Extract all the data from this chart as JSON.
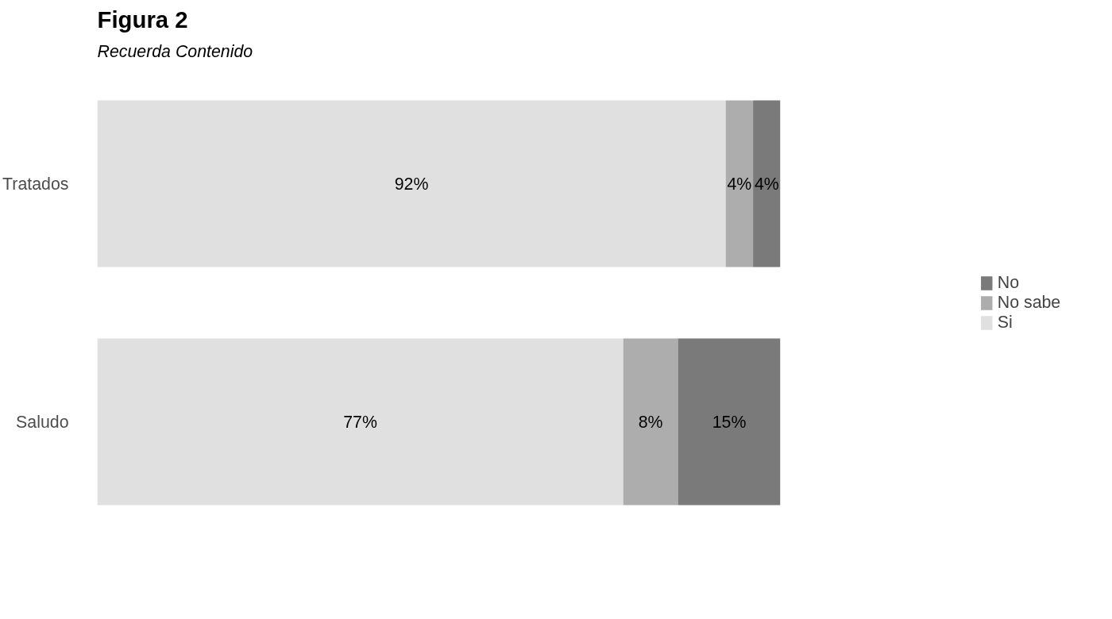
{
  "chart_data": {
    "type": "bar",
    "orientation": "horizontal",
    "stacked": true,
    "title": "Figura 2",
    "subtitle": "Recuerda Contenido",
    "categories": [
      "Tratados",
      "Saludo"
    ],
    "series": [
      {
        "name": "Si",
        "color": "#e0e0e0",
        "values": [
          92,
          77
        ],
        "value_labels": [
          "92%",
          "77%"
        ]
      },
      {
        "name": "No sabe",
        "color": "#adadad",
        "values": [
          4,
          8
        ],
        "value_labels": [
          "4%",
          "8%"
        ]
      },
      {
        "name": "No",
        "color": "#7a7a7a",
        "values": [
          4,
          15
        ],
        "value_labels": [
          "4%",
          "15%"
        ]
      }
    ],
    "legend": "right",
    "tick_labels": "y",
    "grid": false
  }
}
